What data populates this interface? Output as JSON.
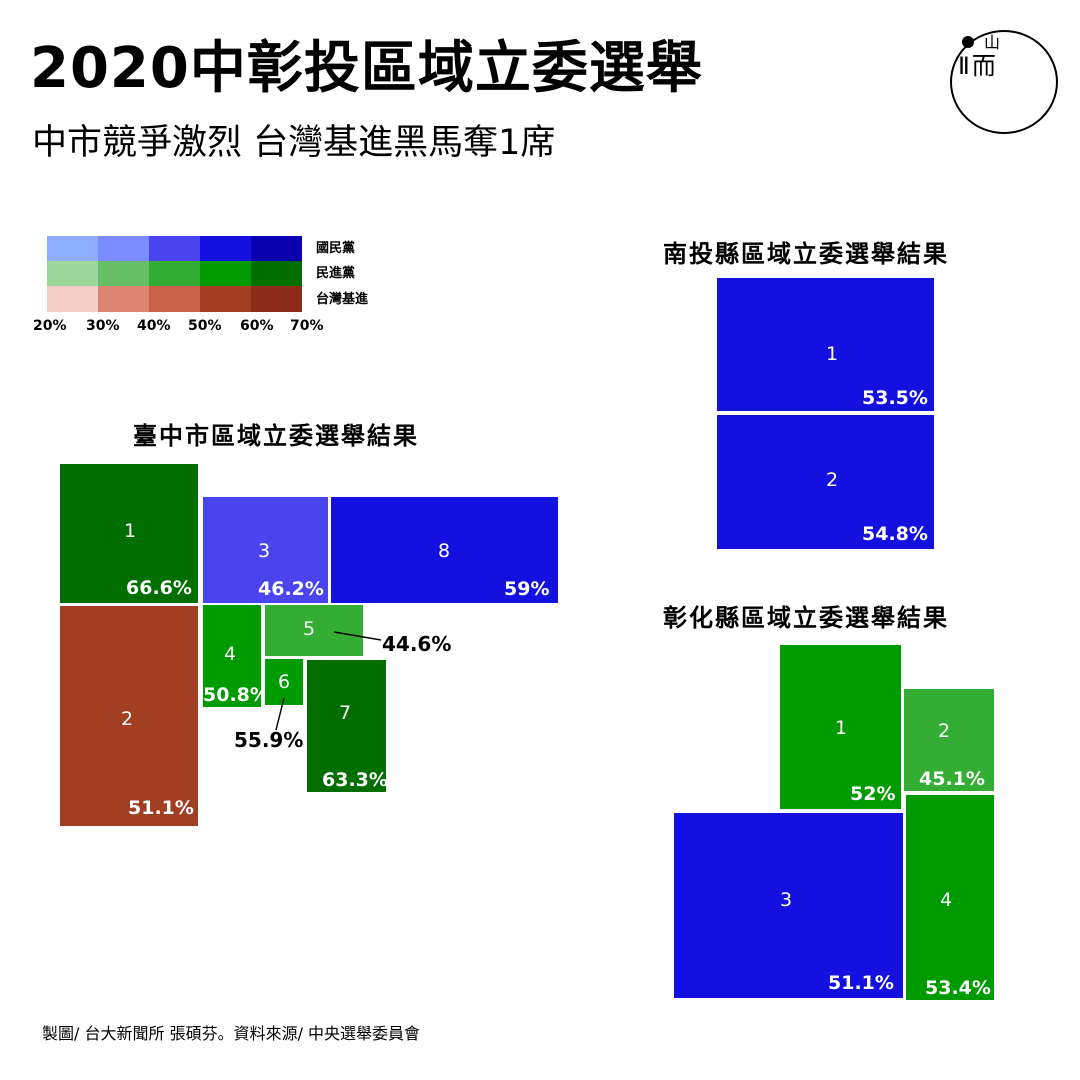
{
  "header": {
    "title": "2020中彰投區域立委選舉",
    "subtitle": "中市競爭激烈 台灣基進黑馬奪1席",
    "logo_text": "Ⅱ而",
    "logo_top_text": "山"
  },
  "legend": {
    "parties": [
      "國民黨",
      "民進黨",
      "台灣基進"
    ],
    "ticks": [
      "20%",
      "30%",
      "40%",
      "50%",
      "60%",
      "70%"
    ],
    "colors": {
      "kmt": [
        "#8fadff",
        "#7a8cff",
        "#4a44ee",
        "#1411e0",
        "#0a00b0"
      ],
      "dpp": [
        "#9bd69b",
        "#66bf66",
        "#33ad33",
        "#009b00",
        "#006e00"
      ],
      "tsp": [
        "#f4cdc5",
        "#de8472",
        "#ca6149",
        "#a23f22",
        "#8a2c17"
      ]
    }
  },
  "maps": {
    "taichung": {
      "title": "臺中市區域立委選舉結果",
      "districts": [
        {
          "number": "1",
          "party": "民進黨",
          "vote_share": "66.6%",
          "color": "#006e00"
        },
        {
          "number": "2",
          "party": "台灣基進",
          "vote_share": "51.1%",
          "color": "#a23f22"
        },
        {
          "number": "3",
          "party": "國民黨",
          "vote_share": "46.2%",
          "color": "#4a44ee"
        },
        {
          "number": "4",
          "party": "民進黨",
          "vote_share": "50.8%",
          "color": "#009b00"
        },
        {
          "number": "5",
          "party": "民進黨",
          "vote_share": "44.6%",
          "color": "#33ad33"
        },
        {
          "number": "6",
          "party": "民進黨",
          "vote_share": "55.9%",
          "color": "#009b00"
        },
        {
          "number": "7",
          "party": "民進黨",
          "vote_share": "63.3%",
          "color": "#006e00"
        },
        {
          "number": "8",
          "party": "國民黨",
          "vote_share": "59%",
          "color": "#1411e0"
        }
      ]
    },
    "nantou": {
      "title": "南投縣區域立委選舉結果",
      "districts": [
        {
          "number": "1",
          "party": "國民黨",
          "vote_share": "53.5%",
          "color": "#1411e0"
        },
        {
          "number": "2",
          "party": "國民黨",
          "vote_share": "54.8%",
          "color": "#1411e0"
        }
      ]
    },
    "changhua": {
      "title": "彰化縣區域立委選舉結果",
      "districts": [
        {
          "number": "1",
          "party": "民進黨",
          "vote_share": "52%",
          "color": "#009b00"
        },
        {
          "number": "2",
          "party": "民進黨",
          "vote_share": "45.1%",
          "color": "#33ad33"
        },
        {
          "number": "3",
          "party": "國民黨",
          "vote_share": "51.1%",
          "color": "#1411e0"
        },
        {
          "number": "4",
          "party": "民進黨",
          "vote_share": "53.4%",
          "color": "#009b00"
        }
      ]
    }
  },
  "footer": {
    "credit": "製圖/ 台大新聞所 張碩芬。資料來源/ 中央選舉委員會"
  }
}
